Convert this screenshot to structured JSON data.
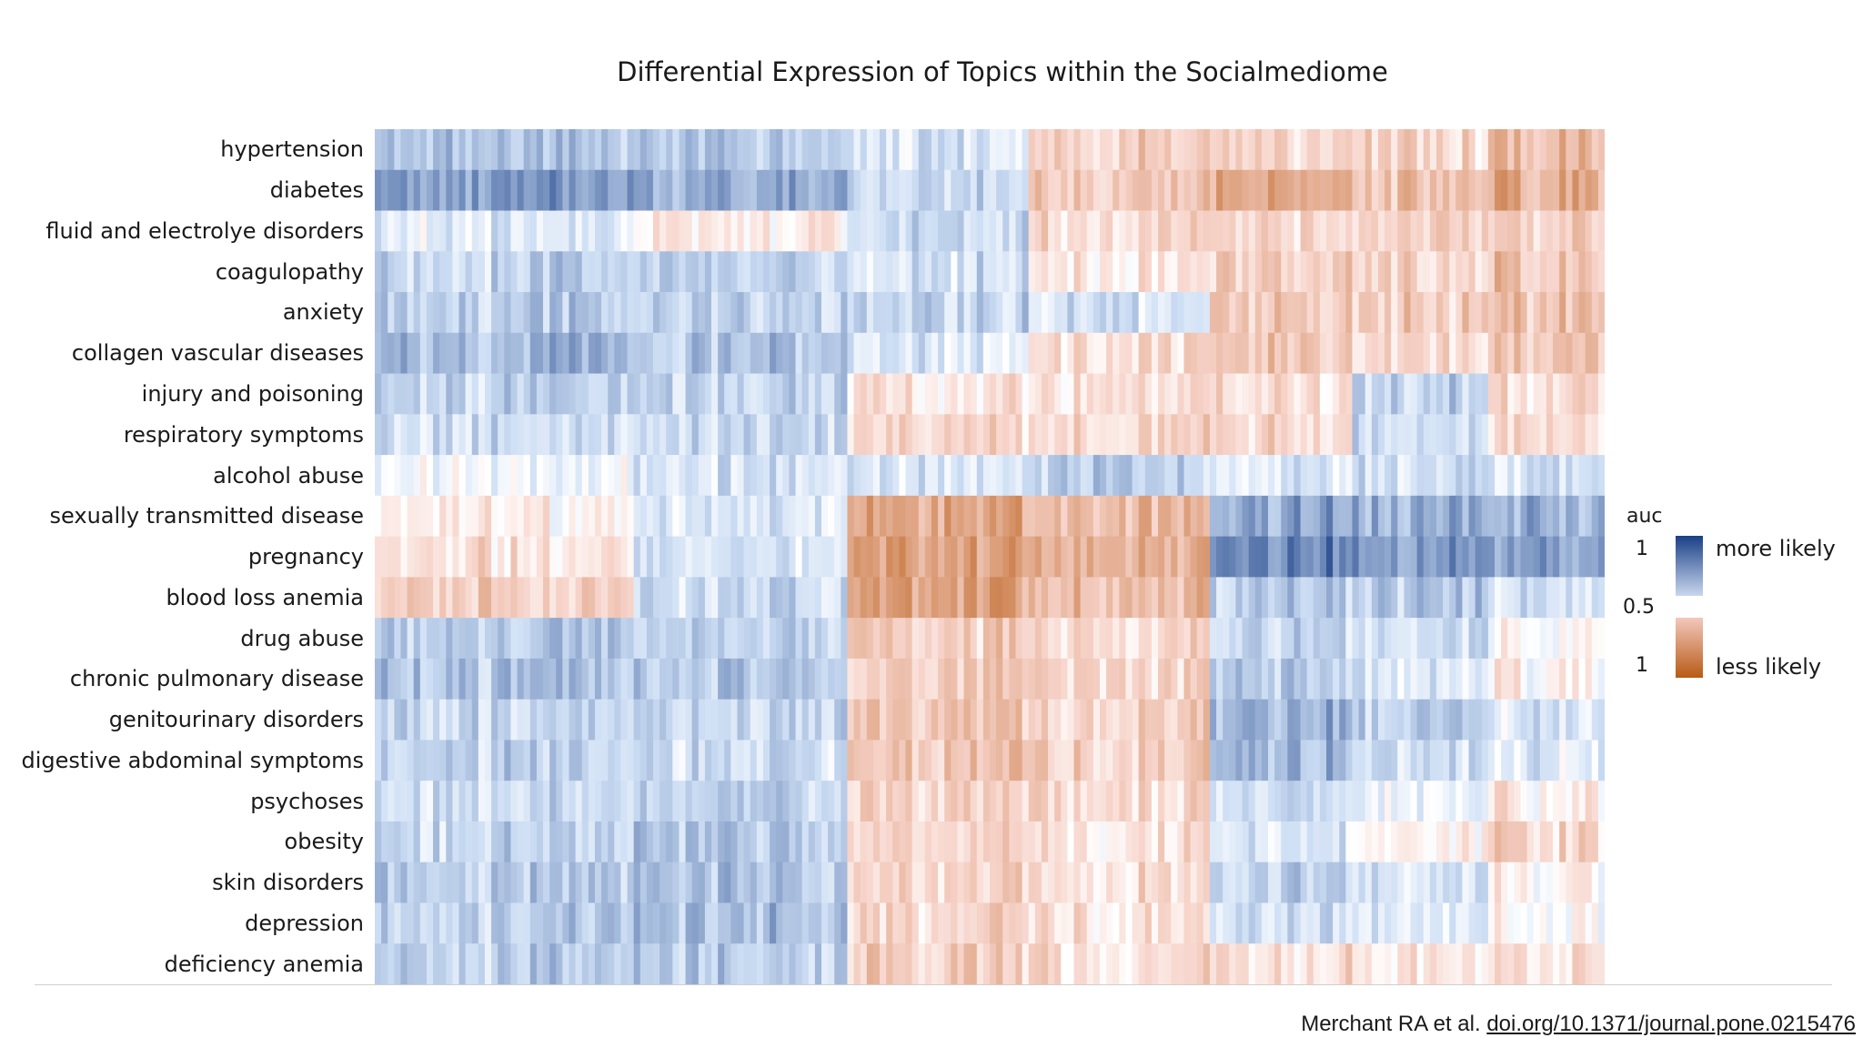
{
  "chart_data": {
    "type": "heatmap",
    "title": "Differential Expression of Topics within the Socialmediome",
    "rows": [
      "hypertension",
      "diabetes",
      "fluid and electrolye disorders",
      "coagulopathy",
      "anxiety",
      "collagen vascular diseases",
      "injury and poisoning",
      "respiratory symptoms",
      "alcohol abuse",
      "sexually transmitted disease",
      "pregnancy",
      "blood loss anemia",
      "drug abuse",
      "chronic pulmonary disease",
      "genitourinary disorders",
      "digestive abdominal symptoms",
      "psychoses",
      "obesity",
      "skin disorders",
      "depression",
      "deficiency anemia"
    ],
    "column_blocks": [
      {
        "columns": 40,
        "values": [
          0.63,
          0.69,
          0.55,
          0.6,
          0.61,
          0.65,
          0.6,
          0.58,
          0.52,
          0.47,
          0.44,
          0.4,
          0.62,
          0.63,
          0.6,
          0.6,
          0.58,
          0.59,
          0.62,
          0.61,
          0.61
        ]
      },
      {
        "columns": 33,
        "values": [
          0.62,
          0.66,
          0.46,
          0.6,
          0.61,
          0.62,
          0.6,
          0.59,
          0.56,
          0.56,
          0.56,
          0.58,
          0.6,
          0.62,
          0.59,
          0.58,
          0.6,
          0.62,
          0.63,
          0.63,
          0.61
        ]
      },
      {
        "columns": 28,
        "values": [
          0.57,
          0.6,
          0.6,
          0.58,
          0.6,
          0.56,
          0.45,
          0.44,
          0.56,
          0.32,
          0.31,
          0.32,
          0.41,
          0.4,
          0.38,
          0.39,
          0.42,
          0.43,
          0.43,
          0.42,
          0.41
        ]
      },
      {
        "columns": 28,
        "values": [
          0.4,
          0.38,
          0.42,
          0.44,
          0.56,
          0.42,
          0.43,
          0.42,
          0.6,
          0.35,
          0.34,
          0.35,
          0.42,
          0.41,
          0.4,
          0.4,
          0.42,
          0.44,
          0.44,
          0.44,
          0.43
        ]
      },
      {
        "columns": 22,
        "values": [
          0.42,
          0.34,
          0.42,
          0.42,
          0.4,
          0.4,
          0.45,
          0.43,
          0.56,
          0.68,
          0.74,
          0.62,
          0.6,
          0.62,
          0.66,
          0.64,
          0.58,
          0.58,
          0.61,
          0.59,
          0.44
        ]
      },
      {
        "columns": 21,
        "values": [
          0.42,
          0.38,
          0.4,
          0.42,
          0.4,
          0.42,
          0.6,
          0.58,
          0.58,
          0.66,
          0.7,
          0.62,
          0.58,
          0.56,
          0.6,
          0.58,
          0.52,
          0.46,
          0.56,
          0.55,
          0.45
        ]
      },
      {
        "columns": 18,
        "values": [
          0.36,
          0.33,
          0.4,
          0.38,
          0.38,
          0.38,
          0.44,
          0.44,
          0.58,
          0.66,
          0.7,
          0.58,
          0.5,
          0.48,
          0.56,
          0.55,
          0.46,
          0.42,
          0.48,
          0.5,
          0.45
        ]
      }
    ],
    "legend": {
      "title": "auc",
      "ticks": [
        "1",
        "0.5",
        "1"
      ],
      "labels": [
        "more likely",
        "less likely"
      ],
      "high_color": "#1a3f86",
      "mid_color": "#ffffff",
      "low_color": "#b85a14"
    },
    "colors": {
      "high": "#1a3f86",
      "mid": "#ffffff",
      "low": "#b85a14"
    }
  },
  "citation": {
    "prefix": "Merchant RA et al.",
    "link": "doi.org/10.1371/journal.pone.0215476"
  }
}
